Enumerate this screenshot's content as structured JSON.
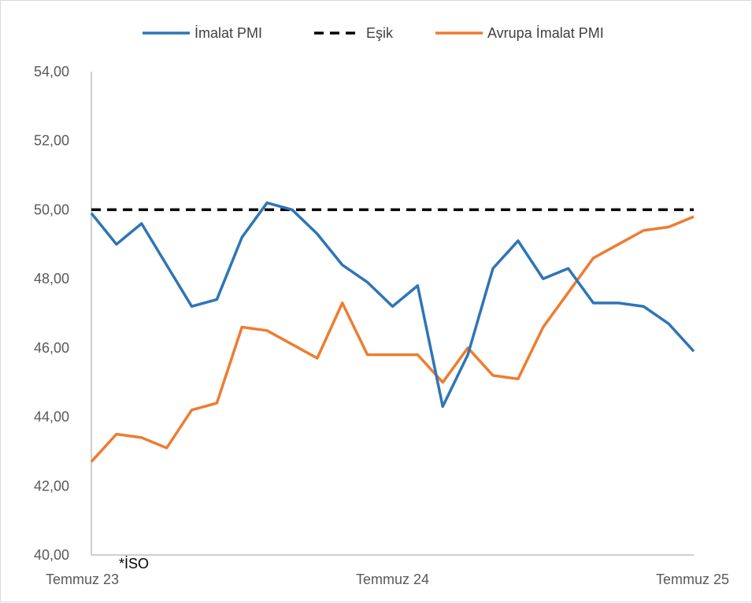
{
  "chart_data": {
    "type": "line",
    "ylim": [
      40,
      54
    ],
    "y_ticks": [
      "40,00",
      "42,00",
      "44,00",
      "46,00",
      "48,00",
      "50,00",
      "52,00",
      "54,00"
    ],
    "y_tick_values": [
      40,
      42,
      44,
      46,
      48,
      50,
      52,
      54
    ],
    "x_tick_labels": [
      {
        "index": 0,
        "label": "Temmuz 23"
      },
      {
        "index": 12,
        "label": "Temmuz 24"
      },
      {
        "index": 24,
        "label": "Temmuz 25"
      }
    ],
    "point_count": 25,
    "grid": false,
    "legend_position": "top",
    "annotation": "*İSO",
    "series": [
      {
        "name": "İmalat PMI",
        "color": "#2e75b6",
        "dash": "solid",
        "values": [
          49.9,
          49.0,
          49.6,
          48.4,
          47.2,
          47.4,
          49.2,
          50.2,
          50.0,
          49.3,
          48.4,
          47.9,
          47.2,
          47.8,
          44.3,
          45.8,
          48.3,
          49.1,
          48.0,
          48.3,
          47.3,
          47.3,
          47.2,
          46.7,
          45.9
        ]
      },
      {
        "name": "Eşik",
        "color": "#000000",
        "dash": "dashed",
        "values": [
          50,
          50,
          50,
          50,
          50,
          50,
          50,
          50,
          50,
          50,
          50,
          50,
          50,
          50,
          50,
          50,
          50,
          50,
          50,
          50,
          50,
          50,
          50,
          50,
          50
        ]
      },
      {
        "name": "Avrupa İmalat PMI",
        "color": "#ed7d31",
        "dash": "solid",
        "values": [
          42.7,
          43.5,
          43.4,
          43.1,
          44.2,
          44.4,
          46.6,
          46.5,
          46.1,
          45.7,
          47.3,
          45.8,
          45.8,
          45.8,
          45.0,
          46.0,
          45.2,
          45.1,
          46.6,
          47.6,
          48.6,
          49.0,
          49.4,
          49.5,
          49.8
        ]
      }
    ]
  }
}
